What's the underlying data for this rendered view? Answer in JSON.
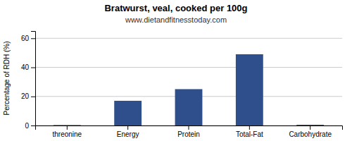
{
  "chart_data": {
    "type": "bar",
    "title": "Bratwurst, veal, cooked per 100g",
    "subtitle": "www.dietandfitnesstoday.com",
    "ylabel": "Percentage of RDH (%)",
    "categories": [
      "threonine",
      "Energy",
      "Protein",
      "Total-Fat",
      "Carbohydrate"
    ],
    "values": [
      0.3,
      17,
      25,
      49,
      0.5
    ],
    "color": "#2e4f8c",
    "ylim": [
      0,
      65
    ],
    "yticks": [
      0,
      20,
      40,
      60
    ],
    "grid": true
  }
}
